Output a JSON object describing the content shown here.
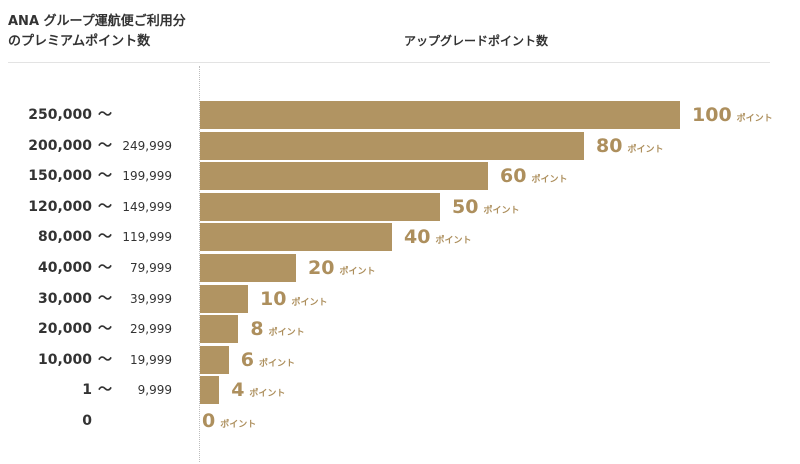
{
  "header": {
    "left_title_line1": "ANA グループ運航便ご利用分",
    "left_title_line2": "のプレミアムポイント数",
    "right_title": "アップグレードポイント数"
  },
  "colors": {
    "bar": "#b19462",
    "value_text": "#ad8f5d",
    "label_text": "#333333"
  },
  "chart_data": {
    "type": "bar",
    "orientation": "horizontal",
    "title": "",
    "xlabel": "アップグレードポイント数",
    "ylabel": "ANA グループ運航便ご利用分のプレミアムポイント数",
    "xlim": [
      0,
      100
    ],
    "grid": false,
    "value_unit": "ポイント",
    "range_separator": "〜",
    "categories": [
      {
        "from": "250,000",
        "to": ""
      },
      {
        "from": "200,000",
        "to": "249,999"
      },
      {
        "from": "150,000",
        "to": "199,999"
      },
      {
        "from": "120,000",
        "to": "149,999"
      },
      {
        "from": "80,000",
        "to": "119,999"
      },
      {
        "from": "40,000",
        "to": "79,999"
      },
      {
        "from": "30,000",
        "to": "39,999"
      },
      {
        "from": "20,000",
        "to": "29,999"
      },
      {
        "from": "10,000",
        "to": "19,999"
      },
      {
        "from": "1",
        "to": "9,999"
      },
      {
        "from": "0",
        "to": "",
        "no_tilde": true
      }
    ],
    "values": [
      100,
      80,
      60,
      50,
      40,
      20,
      10,
      8,
      6,
      4,
      0
    ]
  }
}
